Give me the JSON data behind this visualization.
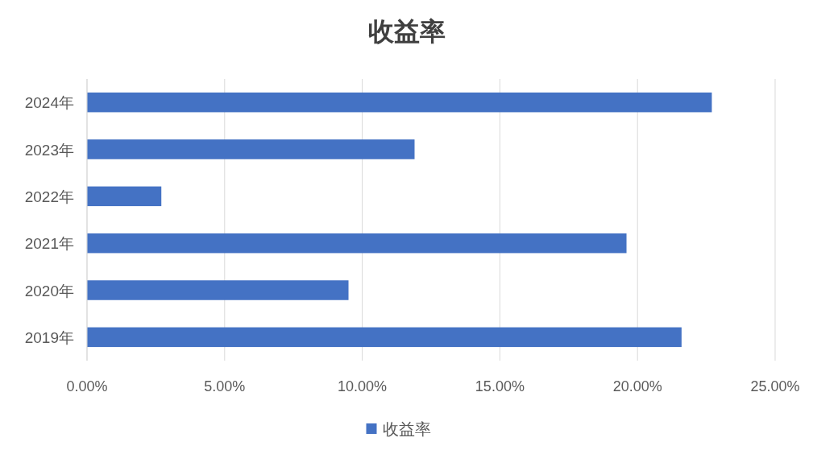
{
  "chart_data": {
    "type": "bar",
    "orientation": "horizontal",
    "title": "收益率",
    "categories": [
      "2024年",
      "2023年",
      "2022年",
      "2021年",
      "2020年",
      "2019年"
    ],
    "series": [
      {
        "name": "收益率",
        "color": "#4472c4",
        "values": [
          22.7,
          11.9,
          2.7,
          19.6,
          9.5,
          21.6
        ]
      }
    ],
    "xlim": [
      0,
      25
    ],
    "xticks": [
      {
        "value": 0,
        "label": "0.00%"
      },
      {
        "value": 5,
        "label": "5.00%"
      },
      {
        "value": 10,
        "label": "10.00%"
      },
      {
        "value": 15,
        "label": "15.00%"
      },
      {
        "value": 20,
        "label": "20.00%"
      },
      {
        "value": 25,
        "label": "25.00%"
      }
    ],
    "grid": "x",
    "legend": "bottom"
  }
}
